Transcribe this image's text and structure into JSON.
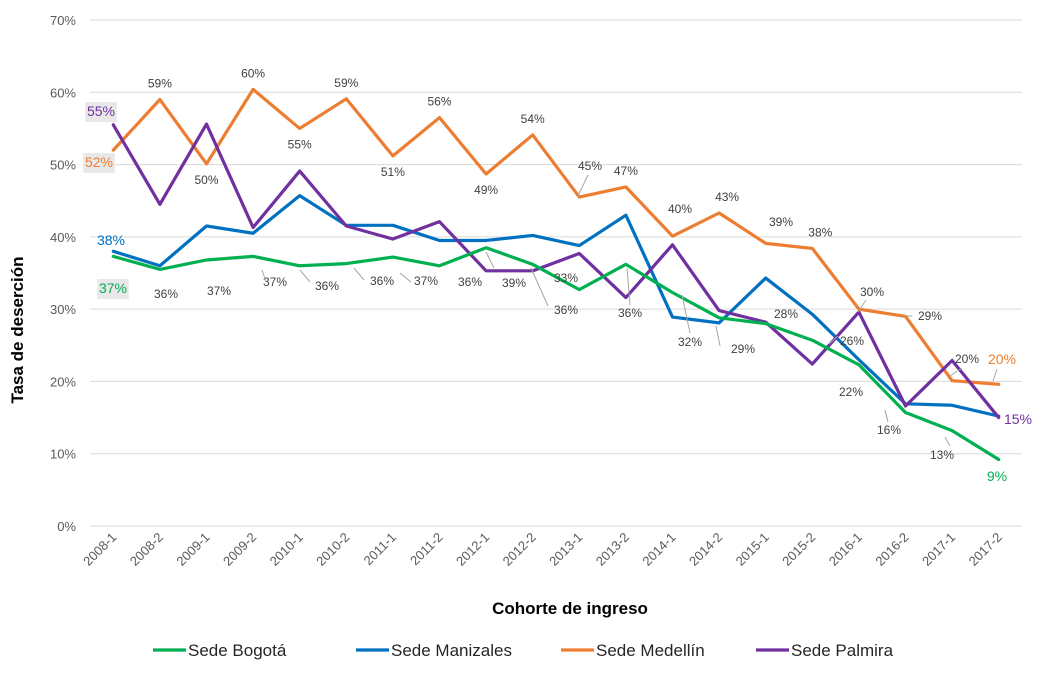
{
  "chart_data": {
    "type": "line",
    "title": "",
    "xlabel": "Cohorte de ingreso",
    "ylabel": "Tasa de deserción",
    "ylim": [
      0,
      70
    ],
    "yticks": [
      "0%",
      "10%",
      "20%",
      "30%",
      "40%",
      "50%",
      "60%",
      "70%"
    ],
    "grid": true,
    "legend_position": "bottom",
    "categories": [
      "2008-1",
      "2008-2",
      "2009-1",
      "2009-2",
      "2010-1",
      "2010-2",
      "2011-1",
      "2011-2",
      "2012-1",
      "2012-2",
      "2013-1",
      "2013-2",
      "2014-1",
      "2014-2",
      "2015-1",
      "2015-2",
      "2016-1",
      "2016-2",
      "2017-1",
      "2017-2"
    ],
    "series": [
      {
        "name": "Sede Bogotá",
        "color": "#00B050",
        "values": [
          37.3,
          35.5,
          36.8,
          37.3,
          36.0,
          36.3,
          37.2,
          36.0,
          38.5,
          36.2,
          32.7,
          36.2,
          32.3,
          28.8,
          28.0,
          25.7,
          22.3,
          15.7,
          13.2,
          9.2
        ],
        "labels": [
          "37%",
          "36%",
          "37%",
          "37%",
          "36%",
          "36%",
          "37%",
          "36%",
          "39%",
          "36%",
          "33%",
          "36%",
          "32%",
          "29%",
          "28%",
          "26%",
          "22%",
          "16%",
          "13%",
          "9%"
        ]
      },
      {
        "name": "Sede Manizales",
        "color": "#0070C0",
        "values": [
          38.0,
          36.0,
          41.5,
          40.5,
          45.7,
          41.6,
          41.6,
          39.5,
          39.5,
          40.2,
          38.8,
          43.0,
          28.9,
          28.1,
          34.3,
          29.3,
          23.0,
          16.9,
          16.7,
          15.2
        ],
        "labels": [
          "38%"
        ]
      },
      {
        "name": "Sede Medellín",
        "color": "#ED7D31",
        "values": [
          52.0,
          59.0,
          50.1,
          60.4,
          55.0,
          59.1,
          51.2,
          56.5,
          48.7,
          54.1,
          45.5,
          46.9,
          40.1,
          43.3,
          39.1,
          38.4,
          30.0,
          29.0,
          20.1,
          19.6
        ],
        "labels": [
          "52%",
          "59%",
          "50%",
          "60%",
          "55%",
          "59%",
          "51%",
          "56%",
          "49%",
          "54%",
          "45%",
          "47%",
          "40%",
          "43%",
          "39%",
          "38%",
          "30%",
          "29%",
          "20%",
          "20%"
        ]
      },
      {
        "name": "Sede Palmira",
        "color": "#7030A0",
        "values": [
          55.5,
          44.5,
          55.6,
          41.3,
          49.1,
          41.5,
          39.7,
          42.1,
          35.3,
          35.3,
          37.7,
          31.6,
          38.9,
          29.8,
          28.2,
          22.4,
          29.6,
          16.6,
          22.9,
          15.0
        ],
        "labels": [
          "55%"
        ]
      }
    ],
    "end_labels": [
      {
        "series": "Sede Palmira",
        "text": "15%"
      }
    ]
  }
}
